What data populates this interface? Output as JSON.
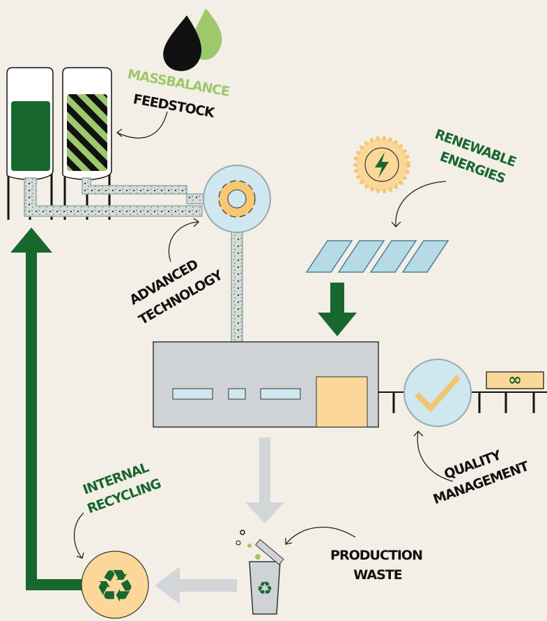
{
  "labels": [
    {
      "lines": [
        "MASSBALANCE",
        "FEEDSTOCK"
      ]
    },
    {
      "lines": [
        "RENEWABLE",
        "ENERGIES"
      ]
    },
    {
      "lines": [
        "ADVANCED",
        "TECHNOLOGY"
      ]
    },
    {
      "lines": [
        "QUALITY",
        "MANAGEMENT"
      ]
    },
    {
      "lines": [
        "INTERNAL",
        "RECYCLING"
      ]
    },
    {
      "lines": [
        "PRODUCTION",
        "WASTE"
      ]
    }
  ]
}
